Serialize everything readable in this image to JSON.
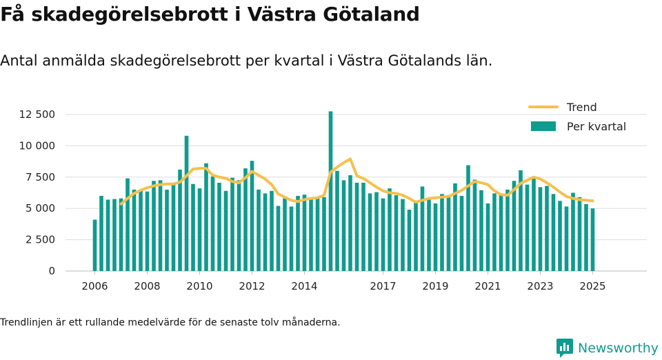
{
  "header": {
    "title": "Få skadegörelsebrott i Västra Götaland",
    "subtitle": "Antal anmälda skadegörelsebrott per kvartal i Västra Götalands län."
  },
  "footer": {
    "note": "Trendlinjen är ett rullande medelvärde för de senaste tolv månaderna.",
    "brand": "Newsworthy"
  },
  "colors": {
    "bar": "#0f9b8e",
    "trend": "#f5c04e",
    "grid": "#dddddd",
    "brand": "#0f9b8e"
  },
  "icons": {
    "brand_logo": "chart-bubble-icon"
  },
  "chart_data": {
    "type": "bar",
    "x_unit": "quarter",
    "start": "2006-Q1",
    "yticks": [
      0,
      2500,
      5000,
      7500,
      10000,
      12500
    ],
    "ytick_labels": [
      "0",
      "2 500",
      "5 000",
      "7 500",
      "10 000",
      "12 500"
    ],
    "xtick_years": [
      2006,
      2008,
      2010,
      2012,
      2014,
      2017,
      2019,
      2021,
      2023,
      2025
    ],
    "xtick_labels": [
      "2006",
      "2008",
      "2010",
      "2012",
      "2014",
      "2017",
      "2019",
      "2021",
      "2023",
      "2025"
    ],
    "ylim": [
      0,
      13000
    ],
    "grid": true,
    "legend_position": "top-right",
    "series": [
      {
        "name": "Per kvartal",
        "type": "bar",
        "values": [
          4100,
          6000,
          5700,
          5750,
          5800,
          7400,
          6500,
          6500,
          6350,
          7200,
          7250,
          6500,
          6950,
          8100,
          10800,
          6950,
          6600,
          8600,
          7550,
          7050,
          6400,
          7450,
          7250,
          8200,
          8800,
          6500,
          6200,
          6400,
          5200,
          5800,
          5150,
          6000,
          6100,
          5700,
          5900,
          5900,
          12750,
          8000,
          7250,
          7650,
          7050,
          7050,
          6200,
          6300,
          5800,
          6600,
          6050,
          5750,
          4900,
          5550,
          6750,
          5750,
          5400,
          6150,
          5950,
          7000,
          6000,
          8450,
          7300,
          6450,
          5400,
          6200,
          6100,
          6500,
          7200,
          8050,
          6900,
          7450,
          6700,
          6800,
          6150,
          5600,
          5150,
          6250,
          5900,
          5350,
          5000
        ]
      },
      {
        "name": "Trend",
        "type": "line",
        "values": [
          null,
          null,
          null,
          null,
          5350,
          5800,
          6200,
          6450,
          6650,
          6800,
          6900,
          6950,
          6950,
          7100,
          7600,
          8150,
          8200,
          8200,
          7650,
          7500,
          7400,
          7150,
          7050,
          7450,
          7950,
          7650,
          7350,
          6900,
          6150,
          5900,
          5650,
          5550,
          5700,
          5800,
          5850,
          6050,
          7900,
          8300,
          8650,
          8950,
          7600,
          7400,
          7050,
          6700,
          6400,
          6250,
          6200,
          6050,
          5800,
          5500,
          5650,
          5800,
          5850,
          5900,
          5950,
          6200,
          6450,
          6800,
          7150,
          7050,
          6900,
          6400,
          6100,
          6050,
          6500,
          7000,
          7250,
          7500,
          7350,
          7050,
          6700,
          6300,
          5950,
          5800,
          5700,
          5650,
          5600
        ]
      }
    ]
  }
}
